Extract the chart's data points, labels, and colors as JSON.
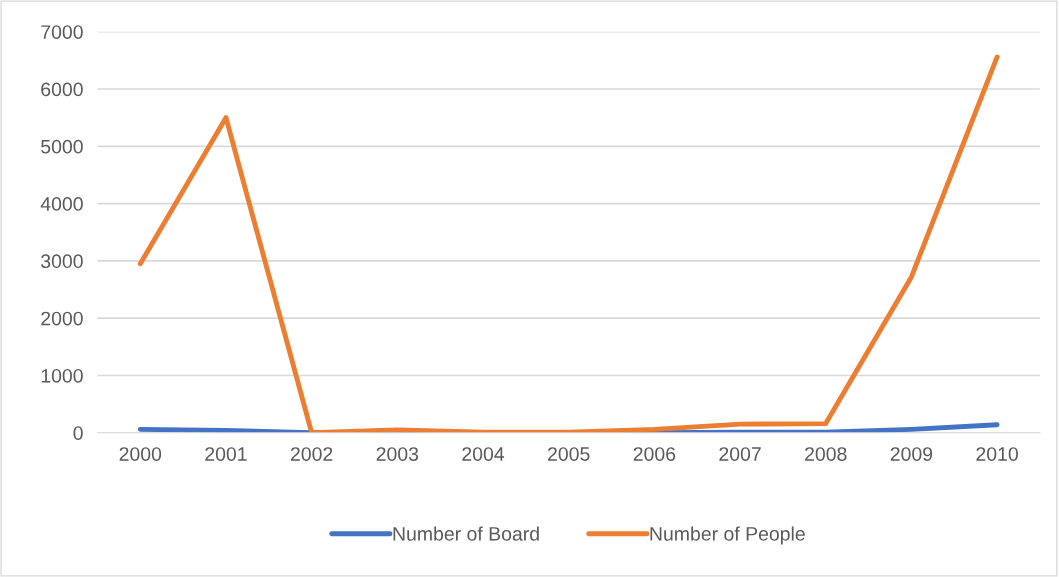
{
  "chart_data": {
    "type": "line",
    "categories": [
      "2000",
      "2001",
      "2002",
      "2003",
      "2004",
      "2005",
      "2006",
      "2007",
      "2008",
      "2009",
      "2010"
    ],
    "series": [
      {
        "name": "Number of Board",
        "color": "#4472c4",
        "values": [
          60,
          40,
          0,
          0,
          0,
          0,
          0,
          10,
          10,
          60,
          140
        ]
      },
      {
        "name": "Number of People",
        "color": "#ed7d31",
        "values": [
          2950,
          5500,
          0,
          50,
          10,
          10,
          60,
          150,
          160,
          2720,
          6560
        ]
      }
    ],
    "ylim": [
      0,
      7000
    ],
    "yticks": [
      0,
      1000,
      2000,
      3000,
      4000,
      5000,
      6000,
      7000
    ],
    "grid": "y",
    "legend": "bottom",
    "marker": "none",
    "line_style": "solid"
  }
}
